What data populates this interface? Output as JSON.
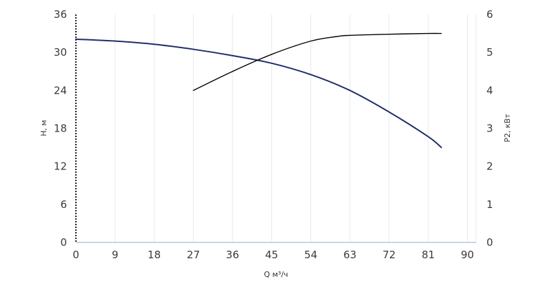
{
  "chart_data": {
    "type": "line",
    "xlabel": "Q м³/ч",
    "ylabel_left": "H, м",
    "ylabel_right": "P2, кВт",
    "x_ticks": [
      0,
      9,
      18,
      27,
      36,
      45,
      54,
      63,
      72,
      81,
      90
    ],
    "y_left_ticks": [
      0,
      6,
      12,
      18,
      24,
      30,
      36
    ],
    "y_right_ticks": [
      0,
      1,
      2,
      3,
      4,
      5,
      6
    ],
    "xlim": [
      0,
      92
    ],
    "ylim_left": [
      0,
      36
    ],
    "ylim_right": [
      0,
      6
    ],
    "grid": "vertical",
    "series": [
      {
        "axis": "left",
        "color": "#1f2d6b",
        "points": [
          [
            0,
            32.1
          ],
          [
            9,
            31.8
          ],
          [
            18,
            31.3
          ],
          [
            27,
            30.5
          ],
          [
            36,
            29.5
          ],
          [
            45,
            28.3
          ],
          [
            54,
            26.5
          ],
          [
            63,
            24.0
          ],
          [
            72,
            20.6
          ],
          [
            81,
            16.7
          ],
          [
            84,
            15.0
          ]
        ]
      },
      {
        "axis": "right",
        "color": "#000000",
        "points": [
          [
            27,
            4.0
          ],
          [
            36,
            4.5
          ],
          [
            45,
            4.95
          ],
          [
            54,
            5.3
          ],
          [
            60,
            5.42
          ],
          [
            63,
            5.45
          ],
          [
            72,
            5.48
          ],
          [
            81,
            5.5
          ],
          [
            84,
            5.5
          ]
        ]
      }
    ]
  }
}
